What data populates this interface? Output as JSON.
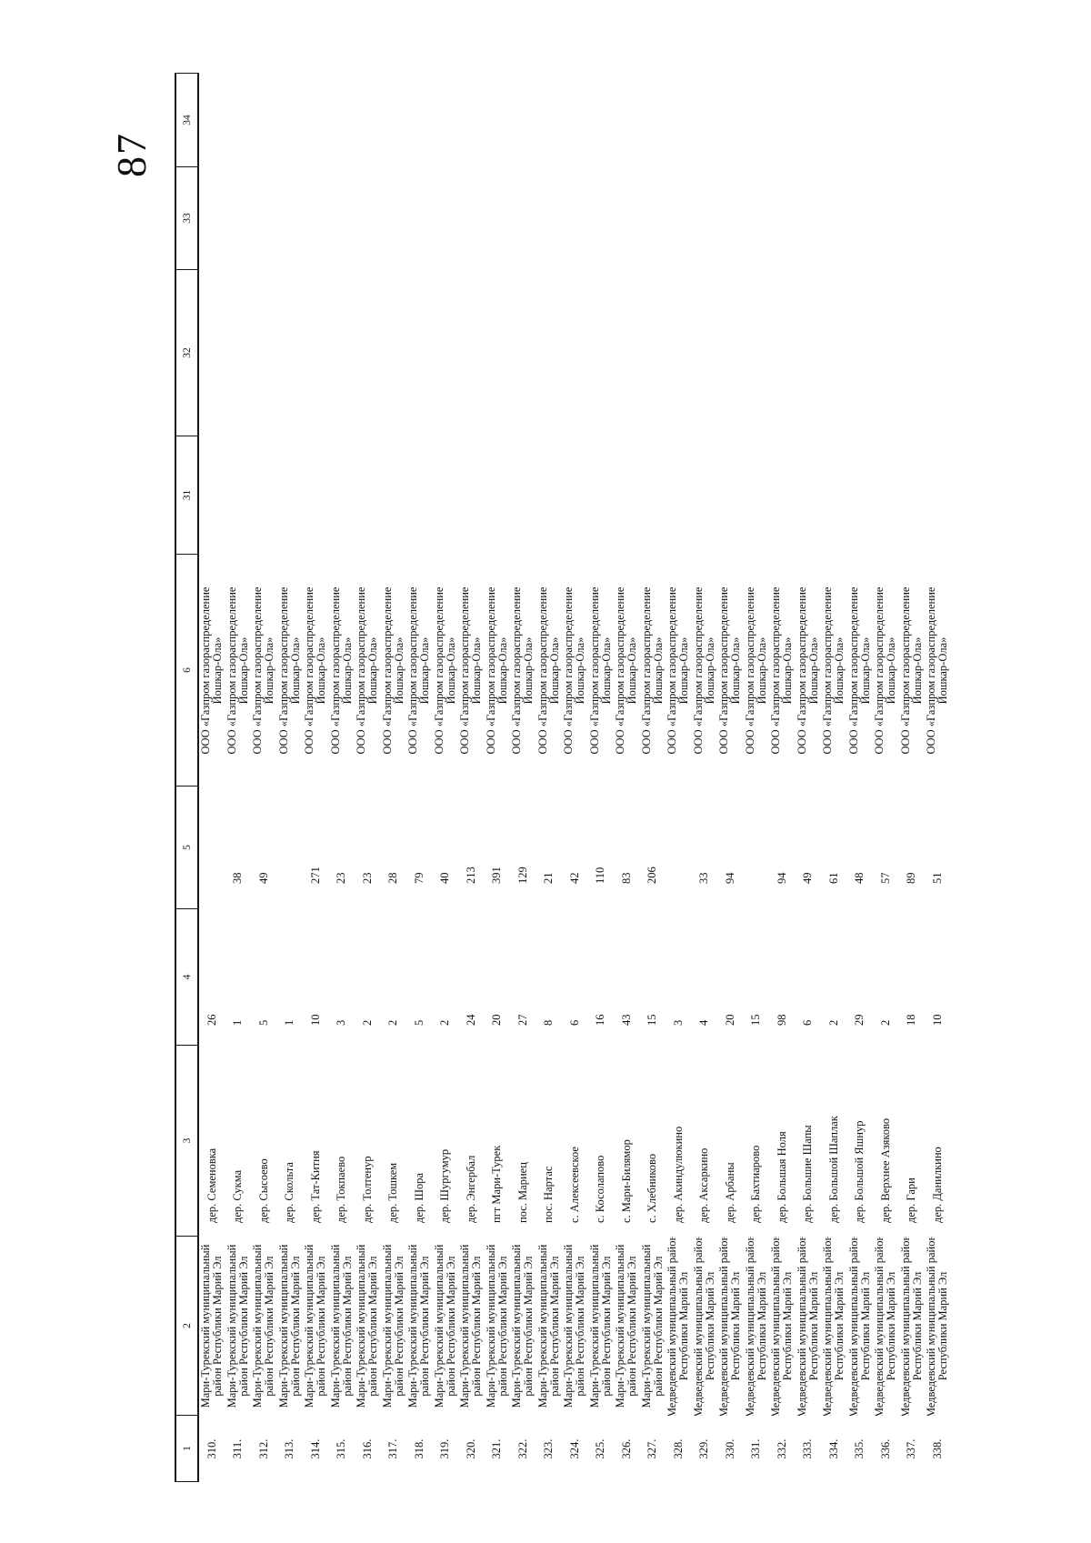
{
  "page_number": "87",
  "table": {
    "header_columns": [
      "1",
      "2",
      "3",
      "4",
      "5",
      "6",
      "31",
      "32",
      "33",
      "34"
    ],
    "districts": {
      "mt": [
        "Мари-Турекский муниципальный",
        "район Республики Марий Эл"
      ],
      "md": [
        "Медведевский муниципальный район",
        "Республики Марий Эл"
      ]
    },
    "organization": [
      "ООО «Газпром газораспределение",
      "Йошкар-Ола»"
    ],
    "rows": [
      {
        "n": "310.",
        "d": "mt",
        "s": "дер. Семеновка",
        "c4": "26",
        "c5": ""
      },
      {
        "n": "311.",
        "d": "mt",
        "s": "дер. Сукма",
        "c4": "1",
        "c5": "38"
      },
      {
        "n": "312.",
        "d": "mt",
        "s": "дер. Сысоево",
        "c4": "5",
        "c5": "49"
      },
      {
        "n": "313.",
        "d": "mt",
        "s": "дер. Скольта",
        "c4": "1",
        "c5": ""
      },
      {
        "n": "314.",
        "d": "mt",
        "s": "дер. Тат-Китня",
        "c4": "10",
        "c5": "271"
      },
      {
        "n": "315.",
        "d": "mt",
        "s": "дер. Токпаево",
        "c4": "3",
        "c5": "23"
      },
      {
        "n": "316.",
        "d": "mt",
        "s": "дер. Толтенур",
        "c4": "2",
        "c5": "23"
      },
      {
        "n": "317.",
        "d": "mt",
        "s": "дер. Тошкем",
        "c4": "2",
        "c5": "28"
      },
      {
        "n": "318.",
        "d": "mt",
        "s": "дер. Шора",
        "c4": "5",
        "c5": "79"
      },
      {
        "n": "319.",
        "d": "mt",
        "s": "дер. Шургумур",
        "c4": "2",
        "c5": "40"
      },
      {
        "n": "320.",
        "d": "mt",
        "s": "дер. Энгербал",
        "c4": "24",
        "c5": "213"
      },
      {
        "n": "321.",
        "d": "mt",
        "s": "пгт Мари-Турек",
        "c4": "20",
        "c5": "391"
      },
      {
        "n": "322.",
        "d": "mt",
        "s": "пос. Мариец",
        "c4": "27",
        "c5": "129"
      },
      {
        "n": "323.",
        "d": "mt",
        "s": "пос. Нартас",
        "c4": "8",
        "c5": "21"
      },
      {
        "n": "324.",
        "d": "mt",
        "s": "с. Алексеевское",
        "c4": "6",
        "c5": "42"
      },
      {
        "n": "325.",
        "d": "mt",
        "s": "с. Косолапово",
        "c4": "16",
        "c5": "110"
      },
      {
        "n": "326.",
        "d": "mt",
        "s": "с. Мари-Билямор",
        "c4": "43",
        "c5": "83"
      },
      {
        "n": "327.",
        "d": "mt",
        "s": "с. Хлебниково",
        "c4": "15",
        "c5": "206"
      },
      {
        "n": "328.",
        "d": "md",
        "s": "дер. Акиндулюкино",
        "c4": "3",
        "c5": ""
      },
      {
        "n": "329.",
        "d": "md",
        "s": "дер. Аксаркино",
        "c4": "4",
        "c5": "33"
      },
      {
        "n": "330.",
        "d": "md",
        "s": "дер. Арбаны",
        "c4": "20",
        "c5": "94"
      },
      {
        "n": "331.",
        "d": "md",
        "s": "дер. Бахтиарово",
        "c4": "15",
        "c5": ""
      },
      {
        "n": "332.",
        "d": "md",
        "s": "дер. Большая Ноля",
        "c4": "98",
        "c5": "94"
      },
      {
        "n": "333.",
        "d": "md",
        "s": "дер. Большие Шапы",
        "c4": "6",
        "c5": "49"
      },
      {
        "n": "334.",
        "d": "md",
        "s": "дер. Большой Шаплак",
        "c4": "2",
        "c5": "61"
      },
      {
        "n": "335.",
        "d": "md",
        "s": "дер. Большой Яшнур",
        "c4": "29",
        "c5": "48"
      },
      {
        "n": "336.",
        "d": "md",
        "s": "дер. Верхнее Азяково",
        "c4": "2",
        "c5": "57"
      },
      {
        "n": "337.",
        "d": "md",
        "s": "дер. Гари",
        "c4": "18",
        "c5": "89"
      },
      {
        "n": "338.",
        "d": "md",
        "s": "дер. Данилкино",
        "c4": "10",
        "c5": "51"
      }
    ]
  }
}
